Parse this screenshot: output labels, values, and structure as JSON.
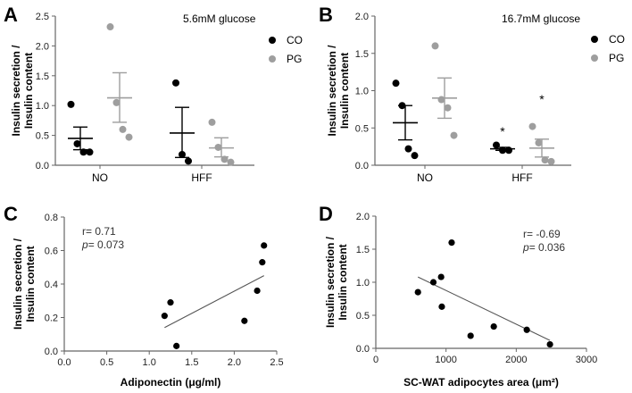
{
  "chart_data": [
    {
      "panel": "A",
      "type": "scatter",
      "annotation": "5.6mM glucose",
      "ylabel": "Insulin secretion /\nInsulin content",
      "ylim": [
        0,
        2.5
      ],
      "yticks": [
        "0.0",
        "0.5",
        "1.0",
        "1.5",
        "2.0",
        "2.5"
      ],
      "categories": [
        "NO",
        "HFF"
      ],
      "series": [
        {
          "name": "CO",
          "color": "#000000",
          "groups": [
            {
              "category": "NO",
              "points": [
                1.02,
                0.36,
                0.22,
                0.22
              ],
              "mean": 0.45,
              "sem_low": 0.26,
              "sem_high": 0.64
            },
            {
              "category": "HFF",
              "points": [
                1.38,
                0.18,
                0.07
              ],
              "mean": 0.54,
              "sem_low": 0.13,
              "sem_high": 0.97
            }
          ]
        },
        {
          "name": "PG",
          "color": "#9e9e9e",
          "groups": [
            {
              "category": "NO",
              "points": [
                2.32,
                1.05,
                0.6,
                0.47
              ],
              "mean": 1.13,
              "sem_low": 0.72,
              "sem_high": 1.55
            },
            {
              "category": "HFF",
              "points": [
                0.72,
                0.3,
                0.1,
                0.05
              ],
              "mean": 0.29,
              "sem_low": 0.14,
              "sem_high": 0.46
            }
          ]
        }
      ],
      "star_labels": []
    },
    {
      "panel": "B",
      "type": "scatter",
      "annotation": "16.7mM glucose",
      "ylabel": "Insulin secretion /\nInsulin content",
      "ylim": [
        0,
        2.0
      ],
      "yticks": [
        "0.0",
        "0.5",
        "1.0",
        "1.5",
        "2.0"
      ],
      "categories": [
        "NO",
        "HFF"
      ],
      "series": [
        {
          "name": "CO",
          "color": "#000000",
          "groups": [
            {
              "category": "NO",
              "points": [
                1.1,
                0.8,
                0.22,
                0.13
              ],
              "mean": 0.57,
              "sem_low": 0.34,
              "sem_high": 0.8
            },
            {
              "category": "HFF",
              "points": [
                0.27,
                0.2,
                0.2
              ],
              "mean": 0.22,
              "sem_low": 0.2,
              "sem_high": 0.24
            }
          ]
        },
        {
          "name": "PG",
          "color": "#9e9e9e",
          "groups": [
            {
              "category": "NO",
              "points": [
                1.6,
                0.88,
                0.77,
                0.4
              ],
              "mean": 0.9,
              "sem_low": 0.63,
              "sem_high": 1.17
            },
            {
              "category": "HFF",
              "points": [
                0.52,
                0.3,
                0.07,
                0.05
              ],
              "mean": 0.23,
              "sem_low": 0.11,
              "sem_high": 0.35
            }
          ]
        }
      ],
      "star_labels": [
        {
          "category": "HFF",
          "series": "CO",
          "text": "*",
          "y": 0.47
        },
        {
          "category": "HFF",
          "series": "PG",
          "text": "*",
          "y": 0.9
        }
      ]
    },
    {
      "panel": "C",
      "type": "scatter",
      "xlabel": "Adiponectin (μg/ml)",
      "ylabel": "Insulin secretion /\nInsulin content",
      "xlim": [
        0,
        2.5
      ],
      "ylim": [
        0,
        0.8
      ],
      "xticks": [
        "0.0",
        "0.5",
        "1.0",
        "1.5",
        "2.0",
        "2.5"
      ],
      "yticks": [
        "0.0",
        "0.2",
        "0.4",
        "0.6",
        "0.8"
      ],
      "points": [
        {
          "x": 1.18,
          "y": 0.21
        },
        {
          "x": 1.25,
          "y": 0.29
        },
        {
          "x": 1.32,
          "y": 0.03
        },
        {
          "x": 2.12,
          "y": 0.18
        },
        {
          "x": 2.27,
          "y": 0.36
        },
        {
          "x": 2.33,
          "y": 0.53
        },
        {
          "x": 2.35,
          "y": 0.63
        }
      ],
      "trendline": {
        "x": [
          1.18,
          2.35
        ],
        "y": [
          0.14,
          0.45
        ]
      },
      "stats": {
        "r": "r= 0.71",
        "p_label": "p",
        "p_value": "= 0.073"
      }
    },
    {
      "panel": "D",
      "type": "scatter",
      "xlabel": "SC-WAT adipocytes area (μm²)",
      "ylabel": "Insulin secretion /\nInsulin content",
      "xlim": [
        0,
        3000
      ],
      "ylim": [
        0,
        2.0
      ],
      "xticks": [
        "0",
        "1000",
        "2000",
        "3000"
      ],
      "yticks": [
        "0.0",
        "0.5",
        "1.0",
        "1.5",
        "2.0"
      ],
      "points": [
        {
          "x": 600,
          "y": 0.85
        },
        {
          "x": 820,
          "y": 1.0
        },
        {
          "x": 930,
          "y": 1.08
        },
        {
          "x": 940,
          "y": 0.63
        },
        {
          "x": 1080,
          "y": 1.6
        },
        {
          "x": 1350,
          "y": 0.19
        },
        {
          "x": 1680,
          "y": 0.33
        },
        {
          "x": 2150,
          "y": 0.28
        },
        {
          "x": 2480,
          "y": 0.06
        }
      ],
      "trendline": {
        "x": [
          600,
          2480
        ],
        "y": [
          1.08,
          0.12
        ]
      },
      "stats": {
        "r": "r= -0.69",
        "p_label": "p",
        "p_value": "= 0.036"
      }
    }
  ]
}
